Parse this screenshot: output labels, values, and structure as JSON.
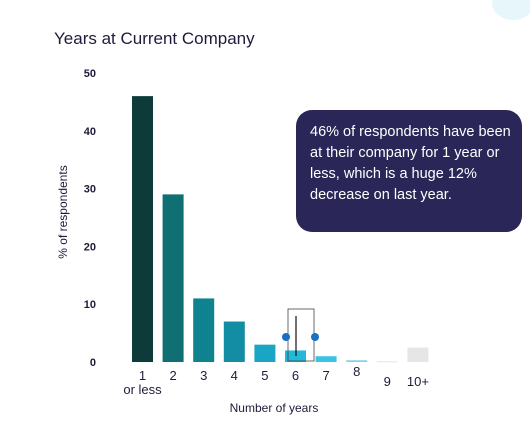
{
  "chart_data": {
    "type": "bar",
    "title": "Years at Current Company",
    "xlabel": "Number of years",
    "ylabel": "% of respondents",
    "ylim": [
      0,
      50
    ],
    "yticks": [
      "0",
      "10",
      "20",
      "30",
      "40",
      "50"
    ],
    "categories": [
      "1",
      "2",
      "3",
      "4",
      "5",
      "6",
      "7",
      "8",
      "9",
      "10+"
    ],
    "category_sublabels": [
      "or less",
      "",
      "",
      "",
      "",
      "",
      "",
      "",
      "",
      ""
    ],
    "values": [
      46,
      29,
      11,
      7,
      3,
      2,
      1,
      0.3,
      0.1,
      2.5
    ],
    "bar_colors": [
      "#0d3b3a",
      "#0f6f72",
      "#0f8290",
      "#138da3",
      "#1aa5c4",
      "#23b7d9",
      "#3bc3e3",
      "#7fd3ea",
      "#c9e6ef",
      "#e6e6e6"
    ],
    "grid": false,
    "legend": "none"
  },
  "callout": {
    "text": "46% of respondents have been at their company for 1 year or less, which is a huge 12% decrease on last year."
  },
  "colors": {
    "title": "#1e1b3a",
    "callout_bg": "#2a2657",
    "marker": "#1a6fc4"
  }
}
